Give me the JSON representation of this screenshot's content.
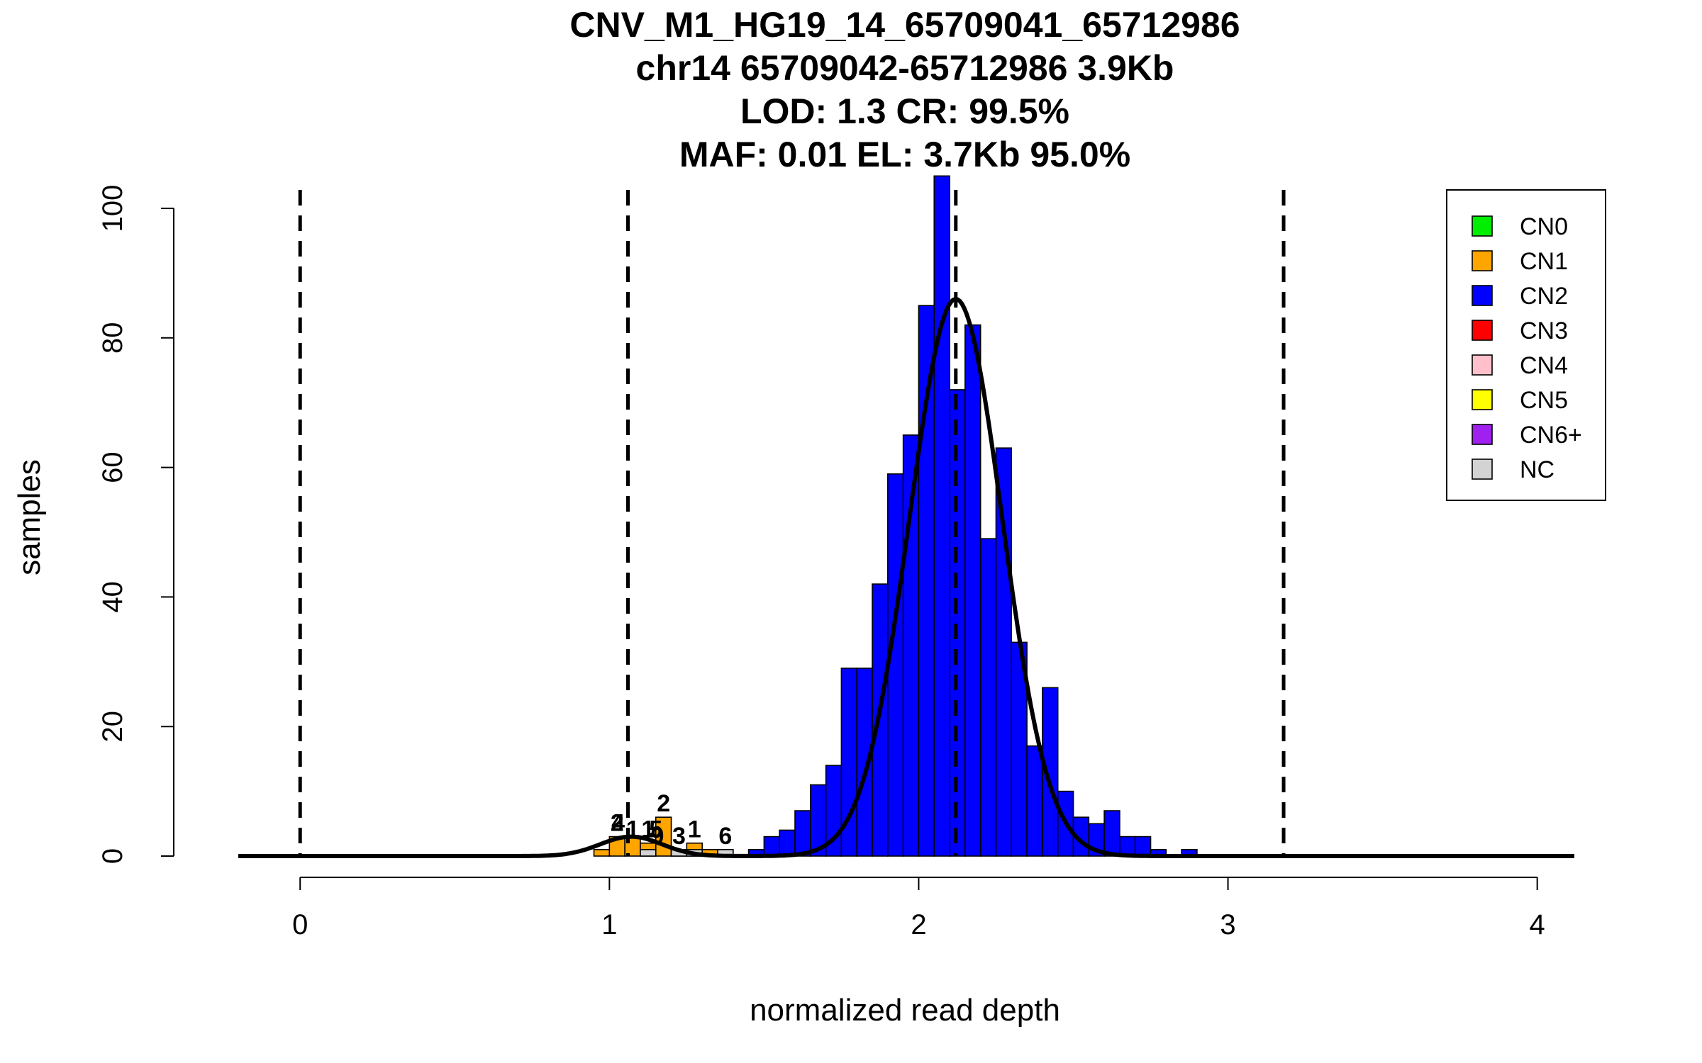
{
  "chart_data": {
    "type": "bar",
    "title_lines": [
      "CNV_M1_HG19_14_65709041_65712986",
      "chr14 65709042-65712986 3.9Kb",
      "LOD: 1.3 CR: 99.5%",
      "MAF: 0.01 EL: 3.7Kb 95.0%"
    ],
    "xlabel": "normalized read depth",
    "ylabel": "samples",
    "xlim": [
      -0.2,
      4.12
    ],
    "ylim": [
      0,
      100
    ],
    "xticks": [
      0,
      1,
      2,
      3,
      4
    ],
    "yticks": [
      0,
      20,
      40,
      60,
      80,
      100
    ],
    "bin_width": 0.05,
    "series": [
      {
        "name": "CN1",
        "color": "#FFA500",
        "bins": [
          {
            "x0": 0.95,
            "count": 1
          },
          {
            "x0": 1.0,
            "count": 3
          },
          {
            "x0": 1.05,
            "count": 3
          },
          {
            "x0": 1.1,
            "count": 2
          },
          {
            "x0": 1.15,
            "count": 6
          },
          {
            "x0": 1.2,
            "count": 1
          },
          {
            "x0": 1.25,
            "count": 2
          },
          {
            "x0": 1.3,
            "count": 1
          },
          {
            "x0": 1.35,
            "count": 1
          }
        ]
      },
      {
        "name": "CN2",
        "color": "#0000FF",
        "bins": [
          {
            "x0": 1.45,
            "count": 1
          },
          {
            "x0": 1.5,
            "count": 3
          },
          {
            "x0": 1.55,
            "count": 4
          },
          {
            "x0": 1.6,
            "count": 7
          },
          {
            "x0": 1.65,
            "count": 11
          },
          {
            "x0": 1.7,
            "count": 14
          },
          {
            "x0": 1.75,
            "count": 29
          },
          {
            "x0": 1.8,
            "count": 29
          },
          {
            "x0": 1.85,
            "count": 42
          },
          {
            "x0": 1.9,
            "count": 59
          },
          {
            "x0": 1.95,
            "count": 65
          },
          {
            "x0": 2.0,
            "count": 85
          },
          {
            "x0": 2.05,
            "count": 105
          },
          {
            "x0": 2.1,
            "count": 72
          },
          {
            "x0": 2.15,
            "count": 82
          },
          {
            "x0": 2.2,
            "count": 49
          },
          {
            "x0": 2.25,
            "count": 63
          },
          {
            "x0": 2.3,
            "count": 33
          },
          {
            "x0": 2.35,
            "count": 17
          },
          {
            "x0": 2.4,
            "count": 26
          },
          {
            "x0": 2.45,
            "count": 10
          },
          {
            "x0": 2.5,
            "count": 6
          },
          {
            "x0": 2.55,
            "count": 5
          },
          {
            "x0": 2.6,
            "count": 7
          },
          {
            "x0": 2.65,
            "count": 3
          },
          {
            "x0": 2.7,
            "count": 3
          },
          {
            "x0": 2.75,
            "count": 1
          },
          {
            "x0": 2.85,
            "count": 1
          }
        ]
      },
      {
        "name": "NC",
        "color": "#D3D3D3",
        "bins": [
          {
            "x0": 1.1,
            "count": 1
          },
          {
            "x0": 1.2,
            "count": 1
          },
          {
            "x0": 1.25,
            "count": 1
          },
          {
            "x0": 1.35,
            "count": 1
          }
        ]
      }
    ],
    "count_labels": [
      {
        "x": 1.025,
        "y": 3,
        "text": "2"
      },
      {
        "x": 1.028,
        "y": 3,
        "text": "4"
      },
      {
        "x": 1.075,
        "y": 2,
        "text": "1"
      },
      {
        "x": 1.125,
        "y": 2,
        "text": "1"
      },
      {
        "x": 1.15,
        "y": 2,
        "text": "5"
      },
      {
        "x": 1.155,
        "y": 1,
        "text": "9"
      },
      {
        "x": 1.175,
        "y": 6,
        "text": "2"
      },
      {
        "x": 1.225,
        "y": 1,
        "text": "3"
      },
      {
        "x": 1.275,
        "y": 2,
        "text": "1"
      },
      {
        "x": 1.375,
        "y": 1,
        "text": "6"
      }
    ],
    "vlines": [
      0,
      1.06,
      2.12,
      3.18
    ],
    "fits": [
      {
        "mean": 1.07,
        "sd": 0.1,
        "peak": 3
      },
      {
        "mean": 2.12,
        "sd": 0.15,
        "peak": 86
      }
    ],
    "legend_position": "top-right",
    "legend": [
      {
        "label": "CN0",
        "color": "#00EE00"
      },
      {
        "label": "CN1",
        "color": "#FFA500"
      },
      {
        "label": "CN2",
        "color": "#0000FF"
      },
      {
        "label": "CN3",
        "color": "#FF0000"
      },
      {
        "label": "CN4",
        "color": "#FFC0CB"
      },
      {
        "label": "CN5",
        "color": "#FFFF00"
      },
      {
        "label": "CN6+",
        "color": "#A020F0"
      },
      {
        "label": "NC",
        "color": "#D3D3D3"
      }
    ]
  }
}
